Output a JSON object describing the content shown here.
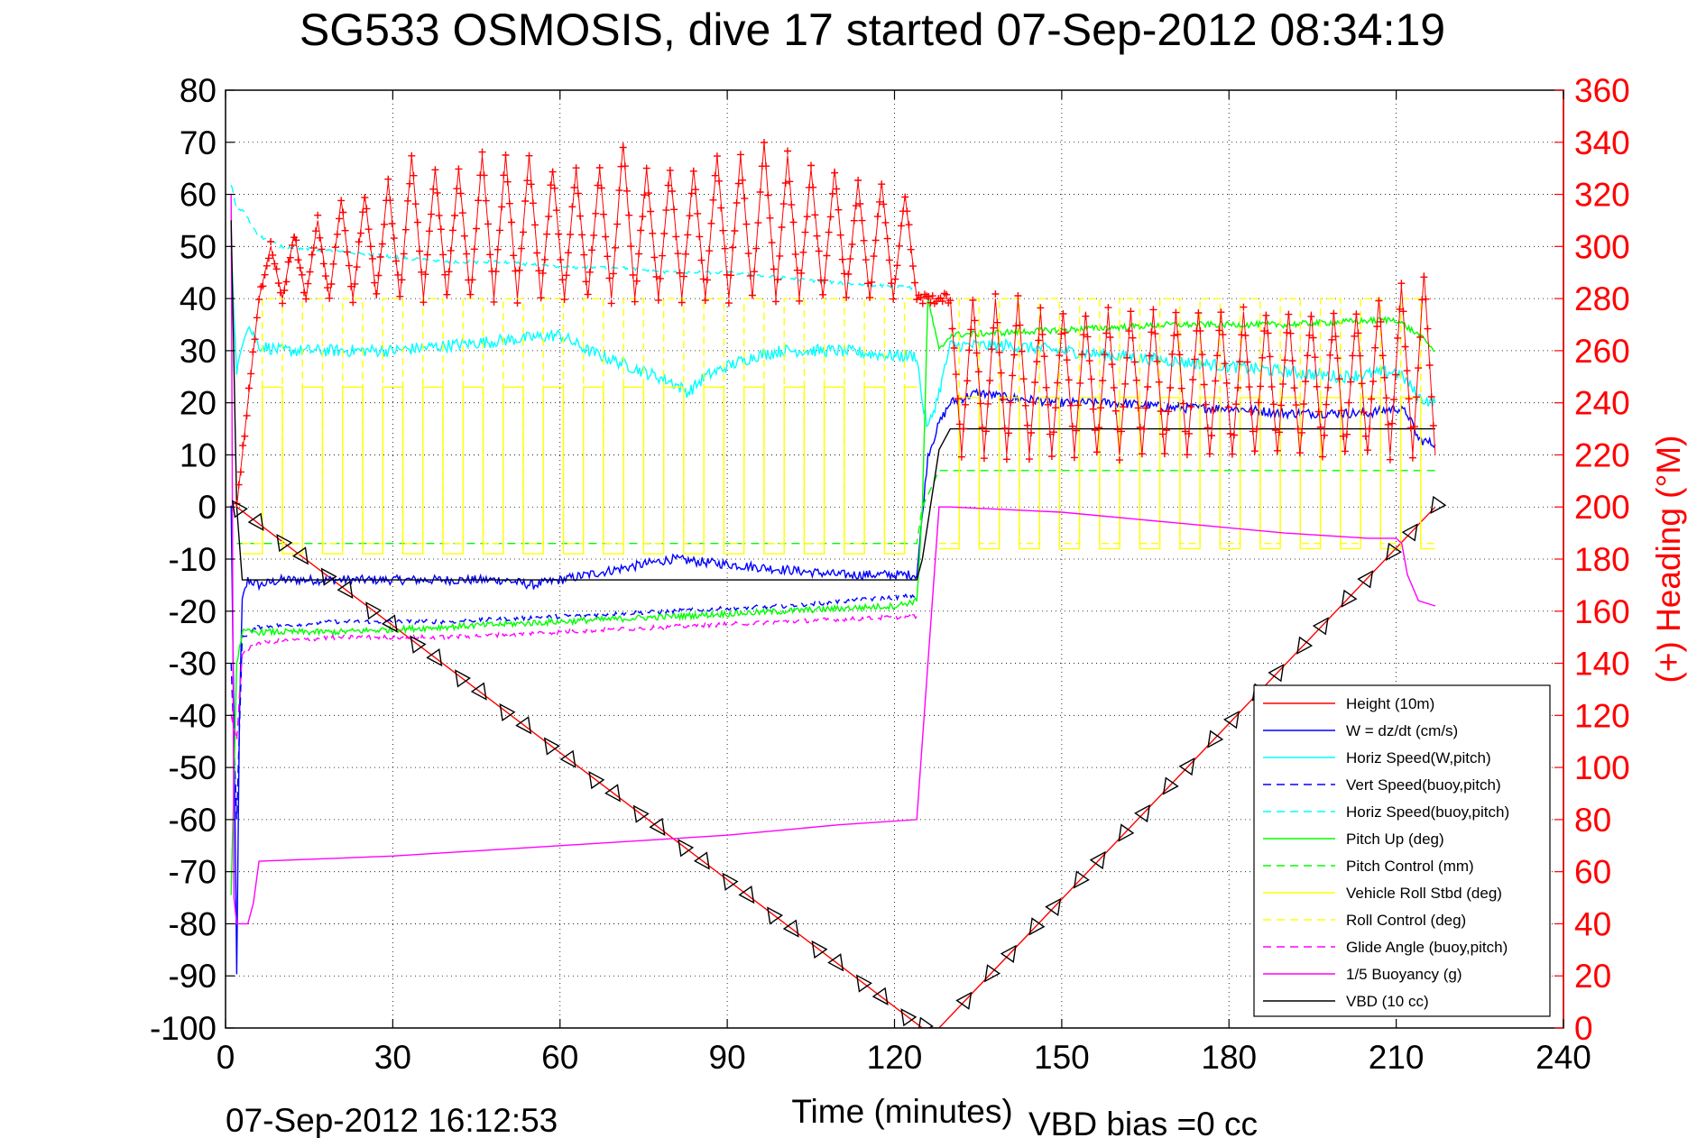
{
  "chart_data": {
    "type": "line",
    "title": "SG533 OSMOSIS, dive 17 started 07-Sep-2012 08:34:19",
    "xlabel": "Time (minutes)",
    "ylabel_right": "(+) Heading (°M)",
    "footer_left": "07-Sep-2012 16:12:53",
    "footer_right": "VBD bias =0 cc",
    "xlim": [
      0,
      240
    ],
    "ylim": [
      -100,
      80
    ],
    "y2lim": [
      0,
      360
    ],
    "x_ticks": [
      0,
      30,
      60,
      90,
      120,
      150,
      180,
      210,
      240
    ],
    "y_ticks": [
      -100,
      -90,
      -80,
      -70,
      -60,
      -50,
      -40,
      -30,
      -20,
      -10,
      0,
      10,
      20,
      30,
      40,
      50,
      60,
      70,
      80
    ],
    "y2_ticks": [
      0,
      20,
      40,
      60,
      80,
      100,
      120,
      140,
      160,
      180,
      200,
      220,
      240,
      260,
      280,
      300,
      320,
      340,
      360
    ],
    "grid": true,
    "legend_position": "bottom-right",
    "colors": {
      "height": "#ff0000",
      "w": "#0000ff",
      "horiz_speed": "#00ffff",
      "pitch": "#00ff00",
      "roll": "#ffff00",
      "glide": "#ff00ff",
      "buoyancy": "#ff00ff",
      "vbd": "#000000",
      "heading": "#ff0000",
      "heading_axis": "#ff0000"
    },
    "series": [
      {
        "name": "Height (10m)",
        "style": "solid",
        "color": "#ff0000",
        "x": [
          2,
          125,
          128,
          217
        ],
        "y": [
          0,
          -100,
          -100,
          0
        ]
      },
      {
        "name": "W = dz/dt (cm/s)",
        "style": "solid",
        "color": "#0000ff",
        "x": [
          1,
          1.5,
          2,
          2.5,
          3,
          4,
          6,
          10,
          20,
          30,
          40,
          50,
          55,
          60,
          65,
          70,
          80,
          90,
          100,
          110,
          120,
          124,
          126,
          128,
          130,
          135,
          140,
          150,
          160,
          170,
          180,
          190,
          200,
          205,
          210,
          212,
          214,
          217
        ],
        "y": [
          0,
          -40,
          -90,
          -40,
          -18,
          -14,
          -15,
          -14,
          -14,
          -14,
          -14,
          -14,
          -15,
          -14,
          -13,
          -12,
          -10,
          -11,
          -12,
          -13,
          -13,
          -13,
          10,
          16,
          20,
          22,
          21,
          20,
          20,
          19,
          19,
          18,
          18,
          18,
          19,
          18,
          13,
          12
        ]
      },
      {
        "name": "Horiz Speed(W,pitch)",
        "style": "solid",
        "color": "#00ffff",
        "x": [
          1,
          2,
          3,
          4,
          6,
          10,
          20,
          30,
          40,
          50,
          60,
          65,
          70,
          75,
          80,
          83,
          86,
          90,
          95,
          100,
          110,
          120,
          124,
          125,
          126,
          128,
          130,
          140,
          150,
          160,
          170,
          180,
          190,
          200,
          210,
          212,
          214,
          217
        ],
        "y": [
          50,
          25,
          32,
          35,
          31,
          30,
          30,
          30,
          31,
          32,
          33,
          30,
          28,
          26,
          24,
          22,
          25,
          27,
          29,
          30,
          30,
          29,
          29,
          20,
          15,
          22,
          31,
          31,
          30,
          29,
          28,
          27,
          26,
          25,
          26,
          24,
          21,
          20
        ]
      },
      {
        "name": "Vert Speed(buoy,pitch)",
        "style": "dashed",
        "color": "#0000ff",
        "x": [
          1,
          2,
          3,
          6,
          20,
          40,
          60,
          80,
          100,
          124
        ],
        "y": [
          -30,
          -60,
          -25,
          -23,
          -22,
          -22,
          -21,
          -20,
          -19,
          -17
        ]
      },
      {
        "name": "Horiz Speed(buoy,pitch)",
        "style": "dashed",
        "color": "#00ffff",
        "x": [
          1,
          2,
          3,
          6,
          10,
          20,
          30,
          40,
          50,
          60,
          70,
          80,
          90,
          100,
          110,
          124
        ],
        "y": [
          62,
          57,
          57,
          52,
          50,
          49,
          48,
          47,
          47,
          46,
          46,
          45,
          45,
          44,
          43,
          42
        ]
      },
      {
        "name": "Pitch Up (deg)",
        "style": "solid",
        "color": "#00ff00",
        "x": [
          1,
          2,
          3,
          6,
          20,
          40,
          60,
          80,
          100,
          120,
          124,
          125,
          126,
          128,
          130,
          150,
          170,
          190,
          210,
          214,
          217
        ],
        "y": [
          -75,
          -30,
          -24,
          -24,
          -24,
          -23,
          -22,
          -21,
          -20,
          -19,
          -18,
          0,
          40,
          30,
          33,
          34,
          35,
          35,
          36,
          33,
          30
        ]
      },
      {
        "name": "Pitch Control (mm)",
        "style": "dashed",
        "color": "#00ff00",
        "x": [
          2,
          3,
          124,
          125,
          128,
          217
        ],
        "y": [
          -7,
          -7,
          -7,
          0,
          7,
          7
        ]
      },
      {
        "name": "Vehicle Roll Stbd (deg)",
        "style": "square-wave",
        "color": "#ffff00",
        "x": [
          3,
          124,
          128,
          217
        ],
        "period": 7.2,
        "low": -9,
        "high": 23,
        "low2": -8,
        "high2": 21
      },
      {
        "name": "Roll Control (deg)",
        "style": "dashed-square-wave",
        "color": "#ffff00",
        "x": [
          3,
          124,
          128,
          217
        ],
        "period": 7.2,
        "low": -7,
        "high": 40,
        "low2": -7,
        "high2": 40
      },
      {
        "name": "Glide Angle (buoy,pitch)",
        "style": "dashed",
        "color": "#ff00ff",
        "x": [
          1,
          2,
          3,
          6,
          20,
          40,
          60,
          80,
          100,
          124
        ],
        "y": [
          -40,
          -45,
          -28,
          -26,
          -25,
          -25,
          -24,
          -23,
          -22,
          -21
        ]
      },
      {
        "name": "1/5 Buoyancy (g)",
        "style": "solid",
        "color": "#ff00ff",
        "x": [
          1,
          1.5,
          2,
          4,
          5,
          6,
          30,
          60,
          90,
          110,
          124,
          128,
          130,
          150,
          170,
          190,
          205,
          210,
          211,
          212,
          214,
          217
        ],
        "y": [
          60,
          -75,
          -80,
          -80,
          -76,
          -68,
          -67,
          -65,
          -63,
          -61,
          -60,
          0,
          0,
          -1,
          -3,
          -5,
          -6,
          -6,
          -7,
          -13,
          -18,
          -19
        ]
      },
      {
        "name": "VBD (10 cc)",
        "style": "solid",
        "color": "#000000",
        "x": [
          1,
          2,
          3,
          124,
          125,
          128,
          130,
          217
        ],
        "y": [
          55,
          0,
          -14,
          -14,
          -10,
          11,
          15,
          15
        ]
      }
    ],
    "height_markers": {
      "x": [
        2,
        6,
        10,
        14,
        18,
        22,
        26,
        30,
        34,
        38,
        42,
        46,
        50,
        54,
        58,
        62,
        66,
        70,
        74,
        78,
        82,
        86,
        90,
        94,
        98,
        102,
        106,
        110,
        114,
        118,
        122,
        125,
        133,
        137,
        141,
        145,
        149,
        153,
        157,
        161,
        165,
        169,
        173,
        177,
        181,
        185,
        189,
        193,
        197,
        201,
        205,
        209,
        213,
        217
      ]
    },
    "heading": {
      "color": "#ff0000",
      "dive_start": [
        2,
        200
      ],
      "dive_ramp_end": [
        6,
        280
      ],
      "climb_start": [
        128,
        280
      ],
      "dive_segments": [
        {
          "x0": 6,
          "x1": 124,
          "low": 280,
          "highs": [
            300,
            305,
            310,
            318,
            320,
            325,
            335,
            330,
            330,
            335,
            335,
            335,
            330,
            330,
            330,
            340,
            330,
            330,
            330,
            335,
            335,
            340,
            335,
            330,
            330,
            325,
            325,
            320
          ]
        },
        {
          "x0": 128,
          "x1": 217,
          "low": 220,
          "highs": [
            280,
            280,
            280,
            280,
            275,
            275,
            275,
            275,
            275,
            275,
            275,
            275,
            275,
            275,
            275,
            275,
            275,
            275,
            275,
            280,
            285,
            290
          ]
        }
      ],
      "dive_high_anchor": 320,
      "climb_low_anchor": 220
    }
  }
}
